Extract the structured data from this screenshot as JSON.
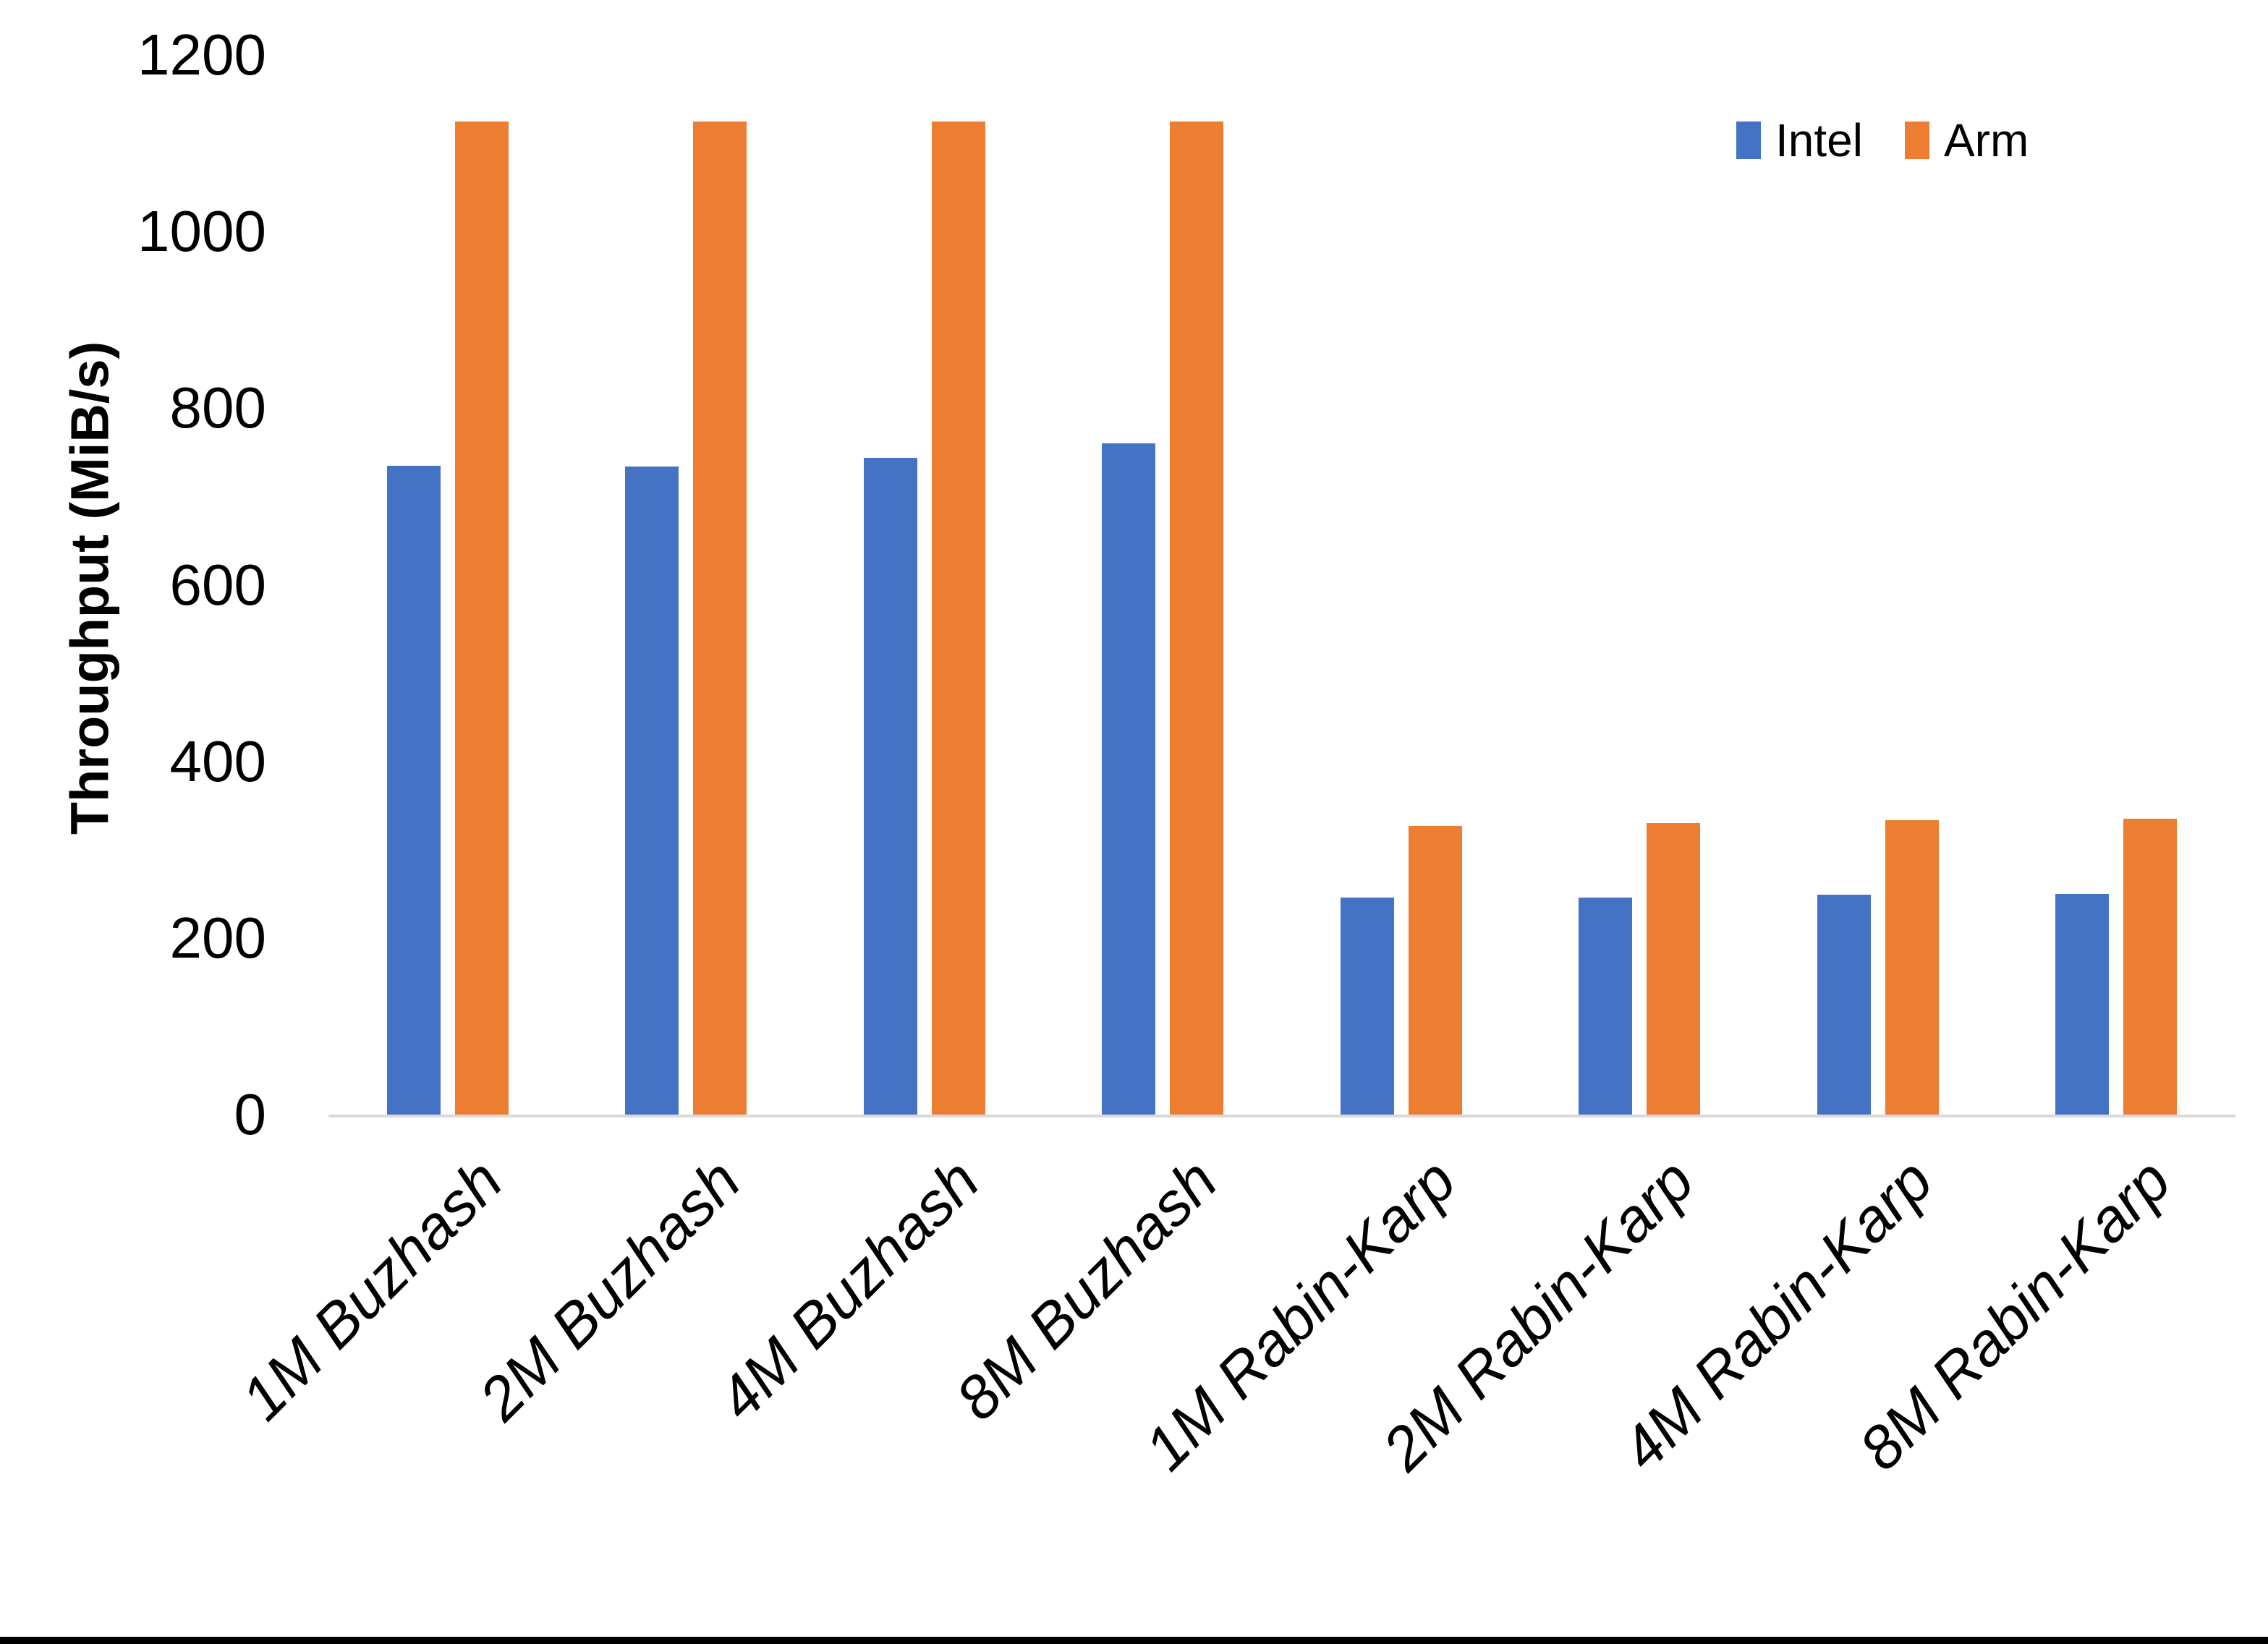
{
  "chart_data": {
    "type": "bar",
    "title": "",
    "xlabel": "",
    "ylabel": "Throughput (MiB/s)",
    "ylim": [
      0,
      1200
    ],
    "ytick_interval": 200,
    "yticks": [
      1200,
      1000,
      800,
      600,
      400,
      200,
      0
    ],
    "grid": false,
    "legend_position": "top-right",
    "categories": [
      "1M Buzhash",
      "2M Buzhash",
      "4M Buzhash",
      "8M Buzhash",
      "1M Rabin-Karp",
      "2M Rabin-Karp",
      "4M Rabin-Karp",
      "8M Rabin-Karp"
    ],
    "series": [
      {
        "name": "Intel",
        "color": "#4472C4",
        "values": [
          735,
          734,
          744,
          760,
          246,
          246,
          249,
          250
        ]
      },
      {
        "name": "Arm",
        "color": "#ED7D31",
        "values": [
          1125,
          1125,
          1125,
          1125,
          327,
          330,
          333,
          335
        ]
      }
    ]
  },
  "colors": {
    "axis_line": "#D9D9D9",
    "text": "#000000",
    "background": "#FFFFFF",
    "bottom_edge": "#000000"
  }
}
